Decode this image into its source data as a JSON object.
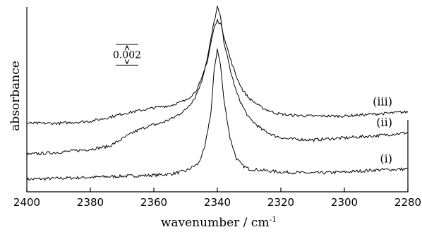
{
  "chart_data": {
    "type": "line",
    "title": "",
    "xlabel": "wavenumber / cm",
    "xlabel_superscript": "-1",
    "ylabel": "absorbance",
    "xlim": [
      2400,
      2280
    ],
    "x_ticks": [
      2400,
      2380,
      2360,
      2340,
      2320,
      2300,
      2280
    ],
    "grid": false,
    "y_scale_bar": {
      "label": "0.002",
      "value": 0.002
    },
    "series": [
      {
        "name": "(i)",
        "baseline": 0.0,
        "noise": 0.00015,
        "points": [
          [
            2400,
            0.0
          ],
          [
            2390,
            0.0001
          ],
          [
            2380,
            0.0002
          ],
          [
            2370,
            0.0003
          ],
          [
            2360,
            0.0004
          ],
          [
            2355,
            0.0005
          ],
          [
            2350,
            0.0008
          ],
          [
            2346,
            0.0015
          ],
          [
            2344,
            0.003
          ],
          [
            2342,
            0.0065
          ],
          [
            2341,
            0.0105
          ],
          [
            2340,
            0.0126
          ],
          [
            2339,
            0.011
          ],
          [
            2338,
            0.0078
          ],
          [
            2336,
            0.004
          ],
          [
            2334,
            0.002
          ],
          [
            2332,
            0.0013
          ],
          [
            2330,
            0.001
          ],
          [
            2320,
            0.0007
          ],
          [
            2310,
            0.0006
          ],
          [
            2300,
            0.0007
          ],
          [
            2290,
            0.0009
          ],
          [
            2280,
            0.001
          ]
        ]
      },
      {
        "name": "(ii)",
        "baseline": 0.0024,
        "noise": 0.00015,
        "points": [
          [
            2400,
            0.0
          ],
          [
            2390,
            0.0002
          ],
          [
            2380,
            0.0005
          ],
          [
            2374,
            0.0008
          ],
          [
            2370,
            0.0015
          ],
          [
            2366,
            0.0022
          ],
          [
            2362,
            0.0027
          ],
          [
            2358,
            0.003
          ],
          [
            2354,
            0.0035
          ],
          [
            2350,
            0.0043
          ],
          [
            2347,
            0.0055
          ],
          [
            2345,
            0.007
          ],
          [
            2343,
            0.0095
          ],
          [
            2341,
            0.0128
          ],
          [
            2340,
            0.0142
          ],
          [
            2339,
            0.0132
          ],
          [
            2338,
            0.011
          ],
          [
            2336,
            0.0082
          ],
          [
            2334,
            0.006
          ],
          [
            2332,
            0.0046
          ],
          [
            2330,
            0.0035
          ],
          [
            2326,
            0.0024
          ],
          [
            2322,
            0.0018
          ],
          [
            2318,
            0.0015
          ],
          [
            2310,
            0.0014
          ],
          [
            2300,
            0.0016
          ],
          [
            2290,
            0.0018
          ],
          [
            2280,
            0.0021
          ]
        ]
      },
      {
        "name": "(iii)",
        "baseline": 0.0054,
        "noise": 0.00013,
        "points": [
          [
            2400,
            0.0
          ],
          [
            2390,
            0.0
          ],
          [
            2380,
            0.0002
          ],
          [
            2375,
            0.0005
          ],
          [
            2370,
            0.0009
          ],
          [
            2365,
            0.0012
          ],
          [
            2360,
            0.0015
          ],
          [
            2355,
            0.0017
          ],
          [
            2350,
            0.0022
          ],
          [
            2347,
            0.003
          ],
          [
            2345,
            0.0042
          ],
          [
            2343,
            0.0062
          ],
          [
            2342,
            0.0078
          ],
          [
            2341,
            0.0092
          ],
          [
            2340,
            0.0099
          ],
          [
            2339,
            0.0096
          ],
          [
            2338,
            0.0085
          ],
          [
            2336,
            0.0063
          ],
          [
            2334,
            0.0045
          ],
          [
            2332,
            0.0032
          ],
          [
            2330,
            0.0024
          ],
          [
            2326,
            0.0015
          ],
          [
            2322,
            0.001
          ],
          [
            2318,
            0.0008
          ],
          [
            2310,
            0.0007
          ],
          [
            2300,
            0.0007
          ],
          [
            2290,
            0.0009
          ],
          [
            2280,
            0.0011
          ]
        ]
      }
    ]
  }
}
